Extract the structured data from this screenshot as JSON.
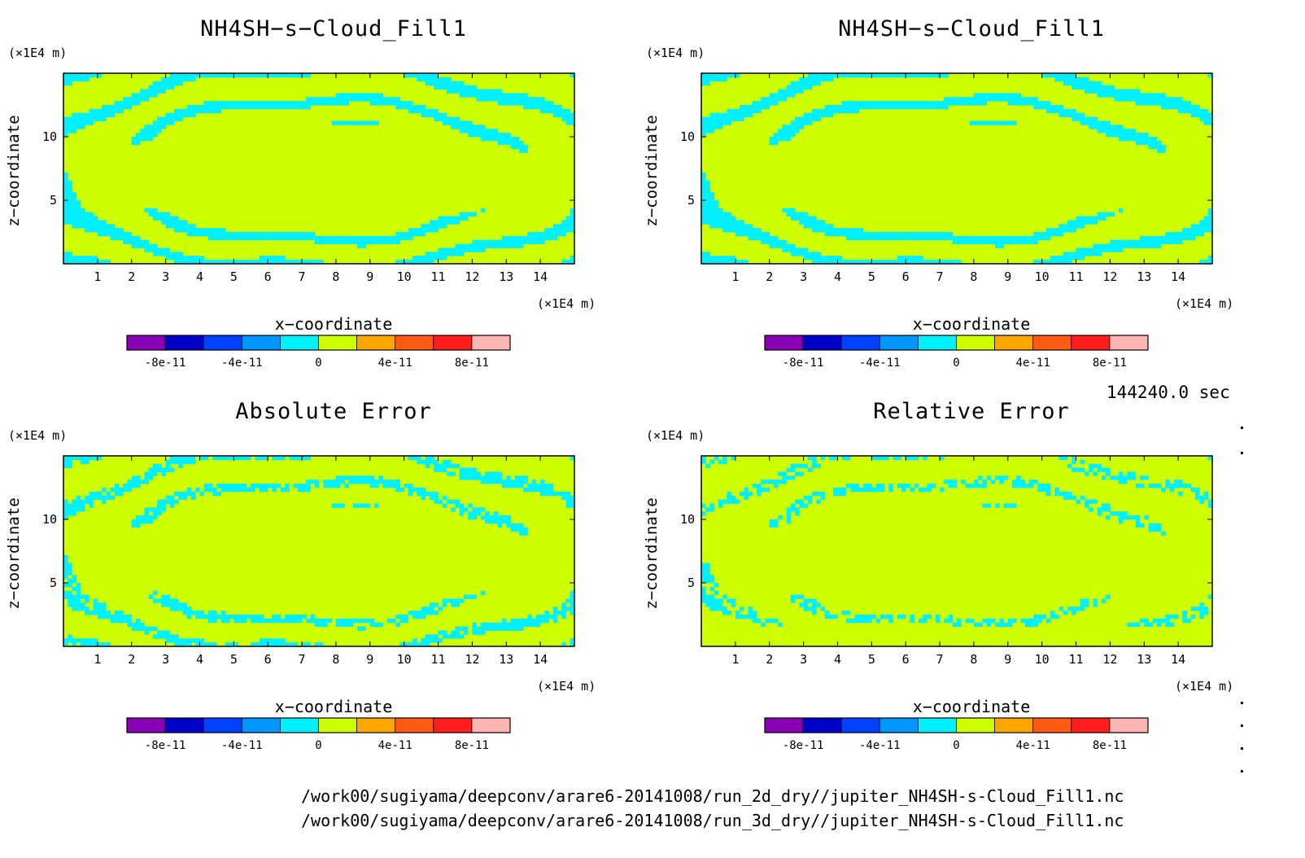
{
  "colors": [
    "#8a00b4",
    "#0000c8",
    "#0041ff",
    "#0096ff",
    "#00f0ff",
    "#cdff00",
    "#ffa500",
    "#ff5a14",
    "#ff1e1e",
    "#ffb4b4"
  ],
  "colorbar": {
    "labels": [
      "-8e-11",
      "-4e-11",
      "0",
      "4e-11",
      "8e-11"
    ],
    "levels": [
      -1e-10,
      -8e-11,
      -6e-11,
      -4e-11,
      -2e-11,
      0,
      2e-11,
      4e-11,
      6e-11,
      8e-11,
      1e-10
    ]
  },
  "time_label": "144240.0 sec",
  "files": [
    "/work00/sugiyama/deepconv/arare6-20141008/run_2d_dry//jupiter_NH4SH-s-Cloud_Fill1.nc",
    "/work00/sugiyama/deepconv/arare6-20141008/run_3d_dry//jupiter_NH4SH-s-Cloud_Fill1.nc"
  ],
  "chart_data": [
    {
      "type": "heatmap",
      "title": "NH4SH−s−Cloud_Fill1",
      "xlabel": "x−coordinate",
      "ylabel": "z−coordinate",
      "xunit": "(×1E4 m)",
      "yunit": "(×1E4 m)",
      "xlim": [
        0,
        15
      ],
      "ylim": [
        0,
        15
      ],
      "xticks": [
        1,
        2,
        3,
        4,
        5,
        6,
        7,
        8,
        9,
        10,
        11,
        12,
        13,
        14
      ],
      "yticks": [
        5,
        10
      ],
      "pattern": "bands"
    },
    {
      "type": "heatmap",
      "title": "NH4SH−s−Cloud_Fill1",
      "xlabel": "x−coordinate",
      "ylabel": "z−coordinate",
      "xunit": "(×1E4 m)",
      "yunit": "(×1E4 m)",
      "xlim": [
        0,
        15
      ],
      "ylim": [
        0,
        15
      ],
      "xticks": [
        1,
        2,
        3,
        4,
        5,
        6,
        7,
        8,
        9,
        10,
        11,
        12,
        13,
        14
      ],
      "yticks": [
        5,
        10
      ],
      "pattern": "bands"
    },
    {
      "type": "heatmap",
      "title": "Absolute Error",
      "xlabel": "x−coordinate",
      "ylabel": "z−coordinate",
      "xunit": "(×1E4 m)",
      "yunit": "(×1E4 m)",
      "xlim": [
        0,
        15
      ],
      "ylim": [
        0,
        15
      ],
      "xticks": [
        1,
        2,
        3,
        4,
        5,
        6,
        7,
        8,
        9,
        10,
        11,
        12,
        13,
        14
      ],
      "yticks": [
        5,
        10
      ],
      "pattern": "broken"
    },
    {
      "type": "heatmap",
      "title": "Relative Error",
      "xlabel": "x−coordinate",
      "ylabel": "z−coordinate",
      "xunit": "(×1E4 m)",
      "yunit": "(×1E4 m)",
      "xlim": [
        0,
        15
      ],
      "ylim": [
        0,
        15
      ],
      "xticks": [
        1,
        2,
        3,
        4,
        5,
        6,
        7,
        8,
        9,
        10,
        11,
        12,
        13,
        14
      ],
      "yticks": [
        5,
        10
      ],
      "pattern": "sparse"
    }
  ]
}
